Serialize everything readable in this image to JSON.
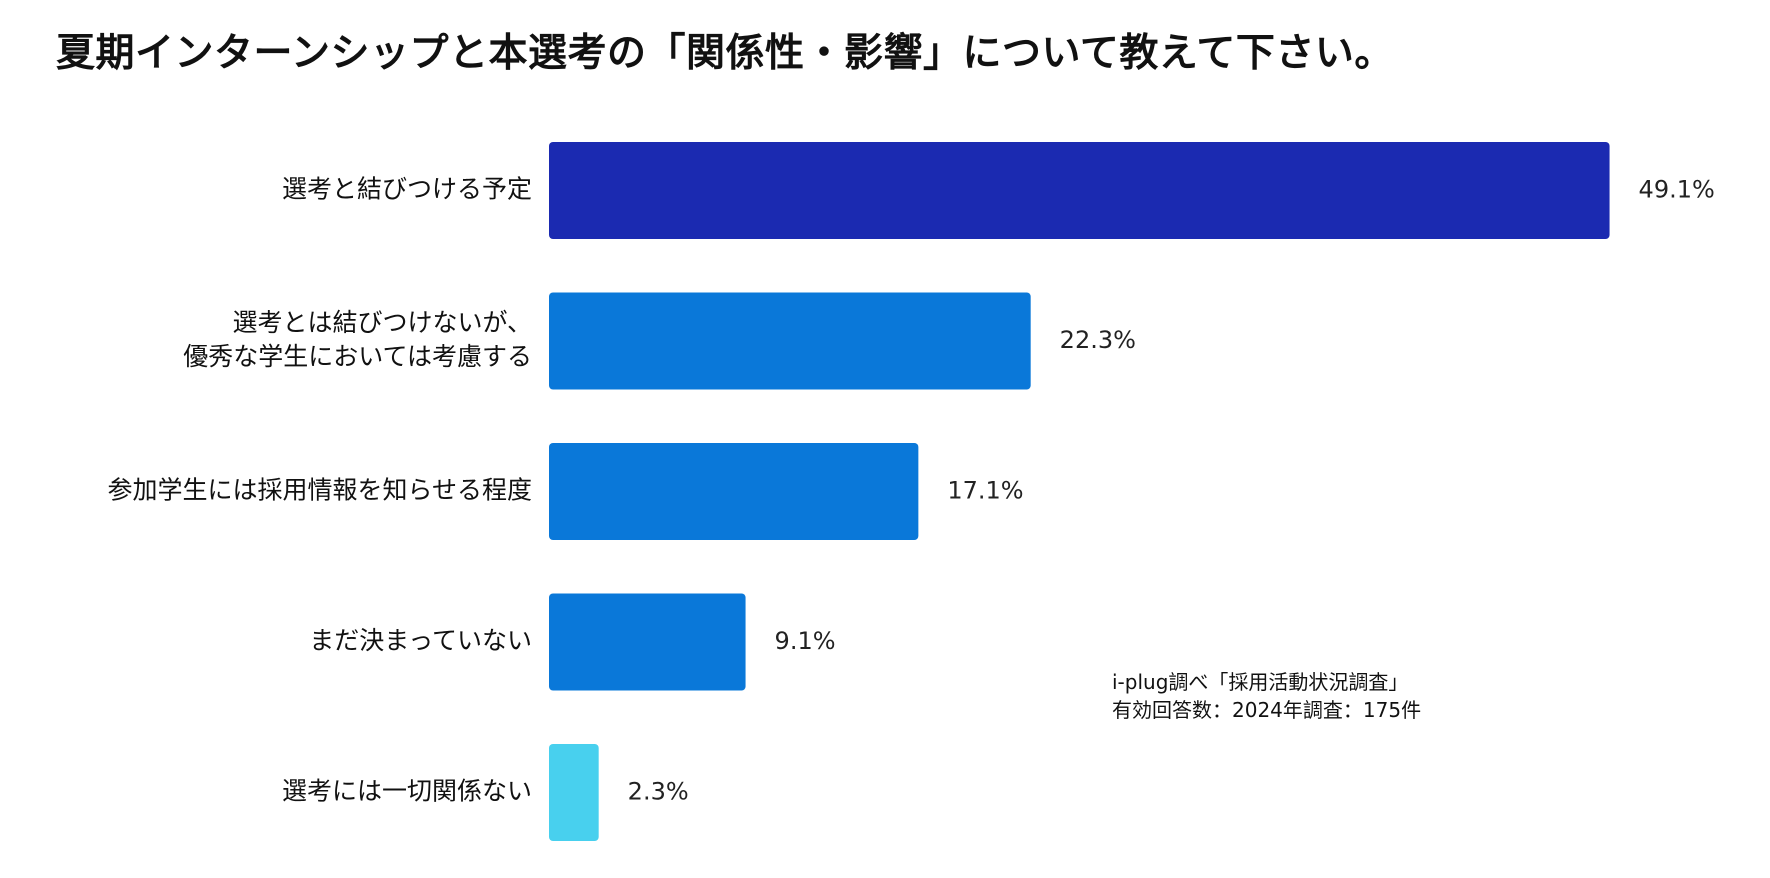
{
  "title": "夏期インターンシップと本選考の「関係性・影響」について教えて下さい。",
  "source": {
    "line1": "i-plug調べ「採用活動状況調査」",
    "line2": "有効回答数：2024年調査：175件"
  },
  "chart_data": {
    "type": "bar",
    "orientation": "horizontal",
    "title": "夏期インターンシップと本選考の「関係性・影響」について教えて下さい。",
    "categories": [
      [
        "選考と結びつける予定"
      ],
      [
        "選考とは結びつけないが、",
        "優秀な学生においては考慮する"
      ],
      [
        "参加学生には採用情報を知らせる程度"
      ],
      [
        "まだ決まっていない"
      ],
      [
        "選考には一切関係ない"
      ]
    ],
    "values": [
      49.1,
      22.3,
      17.1,
      9.1,
      2.3
    ],
    "value_labels": [
      "49.1%",
      "22.3%",
      "17.1%",
      "9.1%",
      "2.3%"
    ],
    "colors": [
      "#1b2ab1",
      "#0a78d9",
      "#0a78d9",
      "#0a78d9",
      "#48d0ee"
    ],
    "unit": "%",
    "grid": false,
    "legend": "none"
  }
}
